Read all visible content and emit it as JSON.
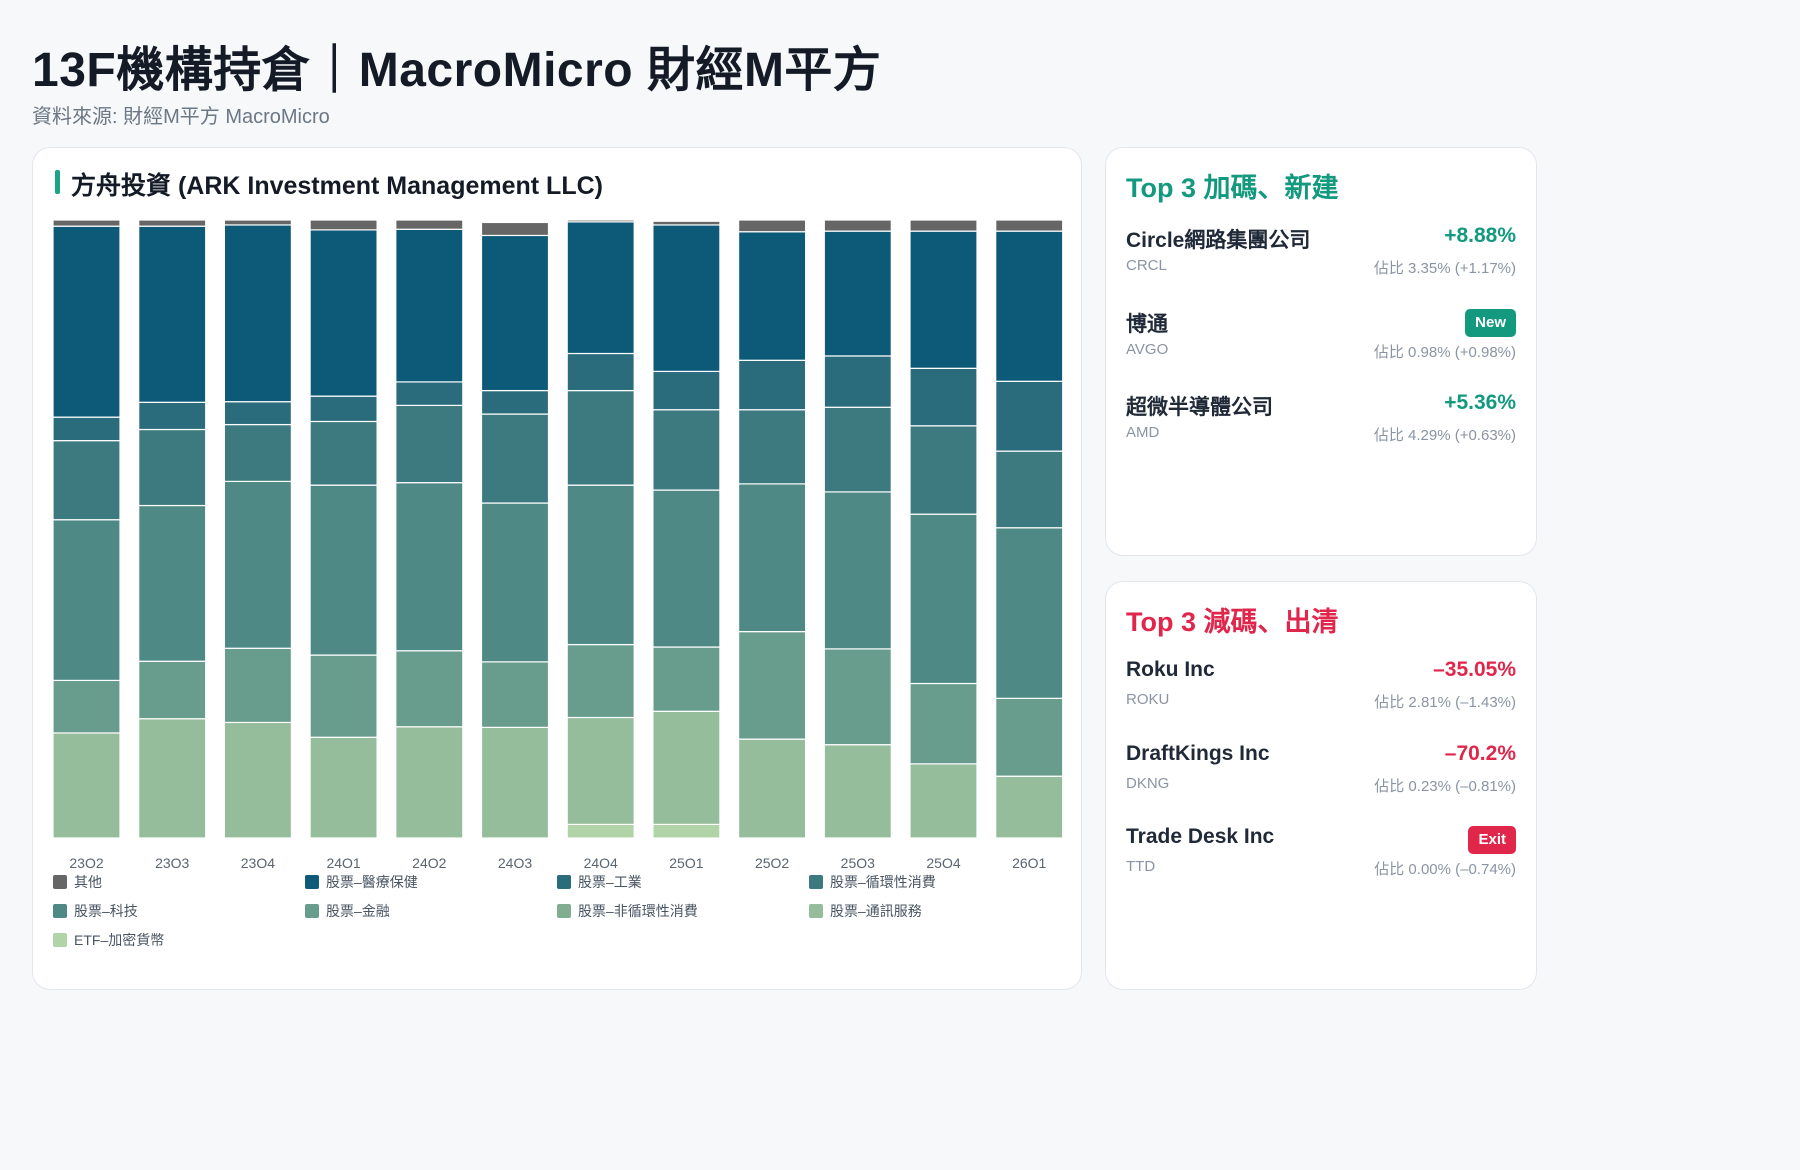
{
  "page": {
    "title": "13F機構持倉｜MacroMicro 財經M平方",
    "subtitle": "資料來源: 財經M平方 MacroMicro"
  },
  "colors": {
    "accent_green": "#13997e",
    "accent_red": "#e0264b"
  },
  "chart_data": {
    "type": "bar",
    "stacked": true,
    "normalized_percent": true,
    "title": "方舟投資 (ARK Investment Management LLC)",
    "categories": [
      "23Q2",
      "23Q3",
      "23Q4",
      "24Q1",
      "24Q2",
      "24Q3",
      "24Q4",
      "25Q1",
      "25Q2",
      "25Q3",
      "25Q4",
      "26Q1"
    ],
    "ylim": [
      0,
      100
    ],
    "legend_position": "bottom",
    "series": [
      {
        "name": "ETF–加密貨幣",
        "color": "#b1d3a8",
        "values": [
          0,
          0,
          0,
          0,
          0,
          0,
          2.2,
          2.2,
          0,
          0,
          0,
          0
        ]
      },
      {
        "name": "股票–通訊服務",
        "color": "#95bc9b",
        "values": [
          17,
          19.3,
          18.7,
          16.3,
          18,
          17.9,
          17.3,
          18.3,
          16,
          15.1,
          12,
          10
        ]
      },
      {
        "name": "股票–非循環性消費",
        "color": "#81ae91",
        "values": [
          0,
          0,
          0,
          0,
          0,
          0,
          0,
          0,
          0,
          0,
          0,
          0
        ]
      },
      {
        "name": "股票–金融",
        "color": "#689c8c",
        "values": [
          8.5,
          9.3,
          12,
          13.3,
          12.3,
          10.6,
          11.8,
          10.4,
          17.4,
          15.5,
          13,
          12.6
        ]
      },
      {
        "name": "股票–科技",
        "color": "#4e8986",
        "values": [
          26,
          25.2,
          27,
          27.5,
          27.2,
          25.7,
          25.8,
          25.4,
          23.9,
          25.4,
          27.4,
          27.6
        ]
      },
      {
        "name": "股票–循環性消費",
        "color": "#3d7a80",
        "values": [
          12.8,
          12.3,
          9.2,
          10.3,
          12.5,
          14.4,
          15.3,
          13,
          12,
          13.7,
          14.3,
          12.4
        ]
      },
      {
        "name": "股票–工業",
        "color": "#2a6b7c",
        "values": [
          3.8,
          4.4,
          3.7,
          4.1,
          3.8,
          3.8,
          6,
          6.2,
          8,
          8.3,
          9.3,
          11.3
        ]
      },
      {
        "name": "股票–醫療保健",
        "color": "#0d5a78",
        "values": [
          30.9,
          28.5,
          28.6,
          26.9,
          24.7,
          25.1,
          21.3,
          23.7,
          20.8,
          20.2,
          22.2,
          24.3
        ]
      },
      {
        "name": "其他",
        "color": "#666666",
        "values": [
          1,
          1,
          0.8,
          1.6,
          1.5,
          2.1,
          0.3,
          0.6,
          1.9,
          1.8,
          1.8,
          1.8
        ]
      }
    ],
    "legend_order": [
      "其他",
      "股票–醫療保健",
      "股票–工業",
      "股票–循環性消費",
      "股票–科技",
      "股票–金融",
      "股票–非循環性消費",
      "股票–通訊服務",
      "ETF–加密貨幣"
    ]
  },
  "increase": {
    "title": "Top 3 加碼、新建",
    "items": [
      {
        "name": "Circle網路集團公司",
        "ticker": "CRCL",
        "change": "+8.88%",
        "badge": "",
        "weight": "佔比 3.35% (+1.17%)"
      },
      {
        "name": "博通",
        "ticker": "AVGO",
        "change": "",
        "badge": "New",
        "weight": "佔比 0.98% (+0.98%)"
      },
      {
        "name": "超微半導體公司",
        "ticker": "AMD",
        "change": "+5.36%",
        "badge": "",
        "weight": "佔比 4.29% (+0.63%)"
      }
    ]
  },
  "decrease": {
    "title": "Top 3 減碼、出清",
    "items": [
      {
        "name": "Roku Inc",
        "ticker": "ROKU",
        "change": "–35.05%",
        "badge": "",
        "weight": "佔比 2.81% (–1.43%)"
      },
      {
        "name": "DraftKings Inc",
        "ticker": "DKNG",
        "change": "–70.2%",
        "badge": "",
        "weight": "佔比 0.23% (–0.81%)"
      },
      {
        "name": "Trade Desk Inc",
        "ticker": "TTD",
        "change": "",
        "badge": "Exit",
        "weight": "佔比 0.00% (–0.74%)"
      }
    ]
  }
}
